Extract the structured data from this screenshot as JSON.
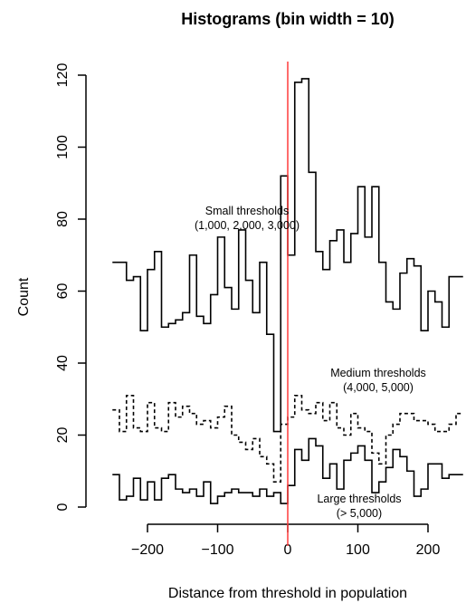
{
  "chart_data": {
    "type": "line",
    "title": "Histograms (bin width = 10)",
    "xlabel": "Distance from threshold in population",
    "ylabel": "Count",
    "xlim": [
      -250,
      250
    ],
    "ylim": [
      -5,
      125
    ],
    "x_ticks": [
      -200,
      -100,
      0,
      100,
      200
    ],
    "y_ticks": [
      0,
      20,
      40,
      60,
      80,
      100,
      120
    ],
    "grid": false,
    "legend": "none",
    "step": "histogram",
    "bin_width": 10,
    "vertical_line": {
      "x": 0,
      "color": "#ff3b3b"
    },
    "bin_edges": [
      -250,
      -240,
      -230,
      -220,
      -210,
      -200,
      -190,
      -180,
      -170,
      -160,
      -150,
      -140,
      -130,
      -120,
      -110,
      -100,
      -90,
      -80,
      -70,
      -60,
      -50,
      -40,
      -30,
      -20,
      -10,
      0,
      10,
      20,
      30,
      40,
      50,
      60,
      70,
      80,
      90,
      100,
      110,
      120,
      130,
      140,
      150,
      160,
      170,
      180,
      190,
      200,
      210,
      220,
      230,
      240,
      250
    ],
    "series": [
      {
        "style": "solid",
        "values": [
          68,
          68,
          63,
          64,
          49,
          66,
          71,
          50,
          51,
          52,
          54,
          70,
          53,
          51,
          59,
          75,
          61,
          55,
          77,
          63,
          54,
          68,
          48,
          21,
          92,
          70,
          118,
          119,
          93,
          71,
          66,
          74,
          77,
          68,
          76,
          89,
          75,
          89,
          68,
          57,
          55,
          65,
          69,
          67,
          49,
          60,
          57,
          50,
          64,
          64
        ],
        "annotation": [
          "Small thresholds",
          "(1,000, 2,000, 3,000)"
        ]
      },
      {
        "style": "dashed",
        "values": [
          27,
          21,
          31,
          22,
          21,
          29,
          22,
          21,
          29,
          25,
          28,
          26,
          23,
          24,
          22,
          25,
          28,
          20,
          18,
          16,
          19,
          14,
          12,
          7,
          23,
          25,
          31,
          27,
          26,
          29,
          24,
          29,
          22,
          20,
          26,
          22,
          21,
          15,
          12,
          20,
          23,
          26,
          26,
          24,
          24,
          23,
          21,
          21,
          23,
          26
        ],
        "annotation": [
          "Medium thresholds",
          "(4,000, 5,000)"
        ]
      },
      {
        "style": "solid",
        "values": [
          9,
          2,
          3,
          8,
          2,
          7,
          2,
          8,
          9,
          5,
          4,
          5,
          3,
          7,
          1,
          3,
          4,
          5,
          4,
          4,
          3,
          5,
          3,
          4,
          1,
          6,
          16,
          13,
          19,
          17,
          8,
          12,
          5,
          13,
          15,
          17,
          13,
          4,
          7,
          11,
          16,
          14,
          10,
          3,
          5,
          12,
          12,
          8,
          9,
          9
        ],
        "annotation": [
          "Large thresholds",
          "(> 5,000)"
        ]
      }
    ]
  }
}
